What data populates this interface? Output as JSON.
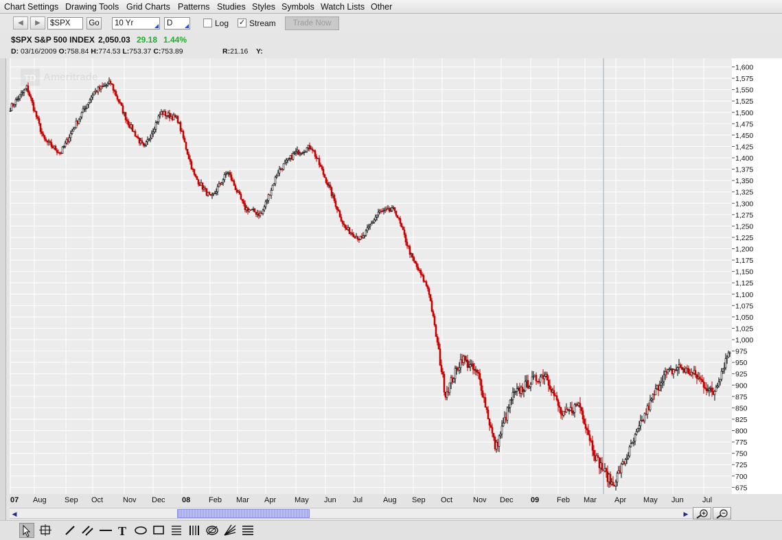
{
  "menu": {
    "items": [
      "Chart Settings",
      "Drawing Tools",
      "Grid Charts",
      "Patterns",
      "Studies",
      "Styles",
      "Symbols",
      "Watch Lists",
      "Other"
    ]
  },
  "toolbar": {
    "back_icon": "back-arrow-icon",
    "forward_icon": "forward-arrow-icon",
    "symbol_value": "$SPX",
    "go_label": "Go",
    "range_value": "10 Yr",
    "interval_value": "D",
    "log_label": "Log",
    "log_checked": false,
    "stream_label": "Stream",
    "stream_checked": true,
    "trade_now_label": "Trade Now"
  },
  "quote": {
    "title": "$SPX S&P 500 INDEX",
    "last": "2,050.03",
    "change": "29.18",
    "change_pct": "1.44%",
    "change_color": "#1fae2c",
    "d_label": "D:",
    "date": "03/16/2009",
    "o_label": "O:",
    "open": "758.84",
    "h_label": "H:",
    "high": "774.53",
    "l_label": "L:",
    "low": "753.37",
    "c_label": "C:",
    "close": "753.89",
    "r_label": "R:",
    "range": "21.16",
    "y_label": "Y:"
  },
  "watermark": {
    "logo_text": "TD",
    "brand_text": "Ameritrade"
  },
  "chart_data": {
    "type": "candlestick",
    "y_axis_side": "right",
    "ylim": [
      660,
      1610
    ],
    "y_ticks": [
      "1,600",
      "1,575",
      "1,550",
      "1,525",
      "1,500",
      "1,475",
      "1,450",
      "1,425",
      "1,400",
      "1,375",
      "1,350",
      "1,325",
      "1,300",
      "1,275",
      "1,250",
      "1,225",
      "1,200",
      "1,175",
      "1,150",
      "1,125",
      "1,100",
      "1,075",
      "1,050",
      "1,025",
      "1,000",
      "975",
      "950",
      "925",
      "900",
      "875",
      "850",
      "825",
      "800",
      "775",
      "750",
      "725",
      "700",
      "675"
    ],
    "x_ticks": [
      {
        "label": "07",
        "bold": true
      },
      {
        "label": "Aug",
        "bold": false
      },
      {
        "label": "Sep",
        "bold": false
      },
      {
        "label": "Oct",
        "bold": false
      },
      {
        "label": "Nov",
        "bold": false
      },
      {
        "label": "Dec",
        "bold": false
      },
      {
        "label": "08",
        "bold": true
      },
      {
        "label": "Feb",
        "bold": false
      },
      {
        "label": "Mar",
        "bold": false
      },
      {
        "label": "Apr",
        "bold": false
      },
      {
        "label": "May",
        "bold": false
      },
      {
        "label": "Jun",
        "bold": false
      },
      {
        "label": "Jul",
        "bold": false
      },
      {
        "label": "Aug",
        "bold": false
      },
      {
        "label": "Sep",
        "bold": false
      },
      {
        "label": "Oct",
        "bold": false
      },
      {
        "label": "Nov",
        "bold": false
      },
      {
        "label": "Dec",
        "bold": false
      },
      {
        "label": "09",
        "bold": true
      },
      {
        "label": "Feb",
        "bold": false
      },
      {
        "label": "Mar",
        "bold": false
      },
      {
        "label": "Apr",
        "bold": false
      },
      {
        "label": "May",
        "bold": false
      },
      {
        "label": "Jun",
        "bold": false
      },
      {
        "label": "Jul",
        "bold": false
      }
    ],
    "key_points": [
      {
        "date": "2007-07",
        "close": 1510
      },
      {
        "date": "2007-07-mid",
        "close": 1555
      },
      {
        "date": "2007-08",
        "close": 1440
      },
      {
        "date": "2007-08-low",
        "close": 1410
      },
      {
        "date": "2007-09",
        "close": 1480
      },
      {
        "date": "2007-10",
        "close": 1545
      },
      {
        "date": "2007-10-peak",
        "close": 1565
      },
      {
        "date": "2007-11",
        "close": 1480
      },
      {
        "date": "2007-11-low",
        "close": 1420
      },
      {
        "date": "2007-12",
        "close": 1500
      },
      {
        "date": "2007-12-end",
        "close": 1485
      },
      {
        "date": "2008-01",
        "close": 1360
      },
      {
        "date": "2008-01-low",
        "close": 1310
      },
      {
        "date": "2008-02",
        "close": 1370
      },
      {
        "date": "2008-03",
        "close": 1290
      },
      {
        "date": "2008-03-low",
        "close": 1275
      },
      {
        "date": "2008-04",
        "close": 1370
      },
      {
        "date": "2008-05",
        "close": 1410
      },
      {
        "date": "2008-05-peak",
        "close": 1425
      },
      {
        "date": "2008-06",
        "close": 1340
      },
      {
        "date": "2008-07",
        "close": 1245
      },
      {
        "date": "2008-07-low",
        "close": 1220
      },
      {
        "date": "2008-08",
        "close": 1280
      },
      {
        "date": "2008-09",
        "close": 1285
      },
      {
        "date": "2008-09-drop",
        "close": 1180
      },
      {
        "date": "2008-10",
        "close": 1110
      },
      {
        "date": "2008-10-crash",
        "close": 880
      },
      {
        "date": "2008-10-rebound",
        "close": 960
      },
      {
        "date": "2008-11",
        "close": 920
      },
      {
        "date": "2008-11-low",
        "close": 760
      },
      {
        "date": "2008-12",
        "close": 875
      },
      {
        "date": "2008-12-mid",
        "close": 905
      },
      {
        "date": "2009-01",
        "close": 925
      },
      {
        "date": "2009-01-end",
        "close": 830
      },
      {
        "date": "2009-02",
        "close": 860
      },
      {
        "date": "2009-02-end",
        "close": 740
      },
      {
        "date": "2009-03-low",
        "close": 680
      },
      {
        "date": "2009-03",
        "close": 755
      },
      {
        "date": "2009-04",
        "close": 840
      },
      {
        "date": "2009-05",
        "close": 920
      },
      {
        "date": "2009-06",
        "close": 940
      },
      {
        "date": "2009-06-end",
        "close": 920
      },
      {
        "date": "2009-07-low",
        "close": 880
      },
      {
        "date": "2009-07",
        "close": 980
      }
    ],
    "up_color": "#000000",
    "down_color": "#c40000",
    "grid": true,
    "crosshair_date": "03/16/2009"
  },
  "scrollbar": {
    "left_arrow_icon": "scroll-left-icon",
    "right_arrow_icon": "scroll-right-icon"
  },
  "zoom": {
    "zoom_in_icon": "zoom-in-icon",
    "zoom_out_icon": "zoom-out-icon"
  },
  "drawing_tools": [
    "cursor-select-icon",
    "crosshair-box-icon",
    "pencil-icon",
    "parallel-lines-icon",
    "horizontal-line-icon",
    "text-tool-icon",
    "ellipse-icon",
    "rectangle-icon",
    "fibonacci-icon",
    "vertical-lines-icon",
    "spiral-icon",
    "fan-lines-icon",
    "horizontal-lines-icon"
  ]
}
